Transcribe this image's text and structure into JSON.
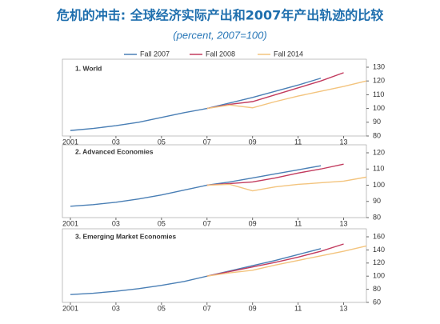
{
  "title": "危机的冲击: 全球经济实际产出和2007年产出轨迹的比较",
  "subtitle": "(percent, 2007=100)",
  "chart_data": [
    {
      "type": "line",
      "title": "1. World",
      "x": [
        2001,
        2002,
        2003,
        2004,
        2005,
        2006,
        2007,
        2008,
        2009,
        2010,
        2011,
        2012,
        2013,
        2014
      ],
      "series": [
        {
          "name": "Fall 2007",
          "color": "#4a7fb5",
          "values": [
            84,
            85.5,
            87.5,
            90,
            93.5,
            97,
            100,
            104,
            108,
            112.5,
            117,
            122,
            null,
            null
          ]
        },
        {
          "name": "Fall 2008",
          "color": "#c23b5e",
          "values": [
            null,
            null,
            null,
            null,
            null,
            null,
            100,
            103,
            105,
            110,
            115,
            120,
            126,
            null
          ]
        },
        {
          "name": "Fall 2014",
          "color": "#f3c47e",
          "values": [
            null,
            null,
            null,
            null,
            null,
            null,
            100,
            102.5,
            100.5,
            105,
            109,
            112.5,
            116,
            120
          ]
        }
      ],
      "xlim": [
        2001,
        2014
      ],
      "xticks": [
        2001,
        {
          "value": 2003,
          "label": "03"
        },
        {
          "value": 2005,
          "label": "05"
        },
        {
          "value": 2007,
          "label": "07"
        },
        {
          "value": 2009,
          "label": "09"
        },
        {
          "value": 2011,
          "label": "11"
        },
        {
          "value": 2013,
          "label": "13"
        }
      ],
      "ylim": [
        80,
        130
      ],
      "yticks": [
        80,
        90,
        100,
        110,
        120,
        130
      ]
    },
    {
      "type": "line",
      "title": "2. Advanced Economies",
      "x": [
        2001,
        2002,
        2003,
        2004,
        2005,
        2006,
        2007,
        2008,
        2009,
        2010,
        2011,
        2012,
        2013,
        2014
      ],
      "series": [
        {
          "color": "#4a7fb5",
          "values": [
            87,
            88,
            89.5,
            91.5,
            94,
            97,
            100,
            102,
            104.5,
            107,
            109.5,
            112,
            null,
            null
          ]
        },
        {
          "color": "#c23b5e",
          "values": [
            null,
            null,
            null,
            null,
            null,
            null,
            100,
            101,
            102,
            104.5,
            107.5,
            110,
            113,
            null
          ]
        },
        {
          "color": "#f3c47e",
          "values": [
            null,
            null,
            null,
            null,
            null,
            null,
            100,
            100.5,
            96.5,
            99,
            100.5,
            101.5,
            102.5,
            105
          ]
        }
      ],
      "xlim": [
        2001,
        2014
      ],
      "xticks": [
        2001,
        {
          "value": 2003,
          "label": "03"
        },
        {
          "value": 2005,
          "label": "05"
        },
        {
          "value": 2007,
          "label": "07"
        },
        {
          "value": 2009,
          "label": "09"
        },
        {
          "value": 2011,
          "label": "11"
        },
        {
          "value": 2013,
          "label": "13"
        }
      ],
      "ylim": [
        80,
        120
      ],
      "yticks": [
        80,
        90,
        100,
        110,
        120
      ]
    },
    {
      "type": "line",
      "title": "3. Emerging Market Economies",
      "x": [
        2001,
        2002,
        2003,
        2004,
        2005,
        2006,
        2007,
        2008,
        2009,
        2010,
        2011,
        2012,
        2013,
        2014
      ],
      "series": [
        {
          "color": "#4a7fb5",
          "values": [
            72,
            74,
            77,
            81,
            86,
            92,
            100,
            108,
            116,
            124,
            133,
            142,
            null,
            null
          ]
        },
        {
          "color": "#c23b5e",
          "values": [
            null,
            null,
            null,
            null,
            null,
            null,
            100,
            107,
            114,
            121,
            129,
            138,
            149,
            null
          ]
        },
        {
          "color": "#f3c47e",
          "values": [
            null,
            null,
            null,
            null,
            null,
            null,
            100,
            105,
            109,
            117,
            124,
            131,
            138,
            146
          ]
        }
      ],
      "xlim": [
        2001,
        2014
      ],
      "xticks": [
        2001,
        {
          "value": 2003,
          "label": "03"
        },
        {
          "value": 2005,
          "label": "05"
        },
        {
          "value": 2007,
          "label": "07"
        },
        {
          "value": 2009,
          "label": "09"
        },
        {
          "value": 2011,
          "label": "11"
        },
        {
          "value": 2013,
          "label": "13"
        }
      ],
      "ylim": [
        60,
        160
      ],
      "yticks": [
        60,
        80,
        100,
        120,
        140,
        160
      ]
    }
  ]
}
